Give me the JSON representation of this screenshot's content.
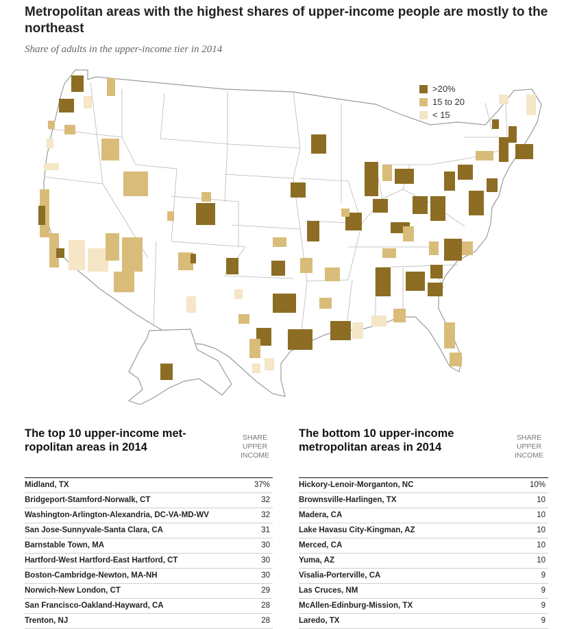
{
  "title": "Metropolitan areas with the highest shares of upper-income people are mostly to the northeast",
  "subtitle": "Share of adults in the upper-income tier in 2014",
  "legend": [
    {
      "label": ">20%",
      "color": "#8c6d23"
    },
    {
      "label": "15 to 20",
      "color": "#d9bc7a"
    },
    {
      "label": "< 15",
      "color": "#f4e6c6"
    }
  ],
  "chart_data": [
    {
      "type": "table",
      "title": "The top 10 upper-income metropolitan areas in 2014",
      "title_lines": [
        "The top 10 upper-income met-",
        "ropolitan areas in 2014"
      ],
      "column_header": [
        "SHARE",
        "UPPER",
        "INCOME"
      ],
      "rows": [
        {
          "area": "Midland, TX",
          "share": "37%"
        },
        {
          "area": "Bridgeport-Stamford-Norwalk, CT",
          "share": "32"
        },
        {
          "area": "Washington-Arlington-Alexandria, DC-VA-MD-WV",
          "share": "32"
        },
        {
          "area": "San Jose-Sunnyvale-Santa Clara, CA",
          "share": "31"
        },
        {
          "area": "Barnstable Town, MA",
          "share": "30"
        },
        {
          "area": "Hartford-West Hartford-East Hartford, CT",
          "share": "30"
        },
        {
          "area": "Boston-Cambridge-Newton, MA-NH",
          "share": "30"
        },
        {
          "area": "Norwich-New London, CT",
          "share": "29"
        },
        {
          "area": "San Francisco-Oakland-Hayward, CA",
          "share": "28"
        },
        {
          "area": "Trenton, NJ",
          "share": "28"
        }
      ]
    },
    {
      "type": "table",
      "title": "The bottom 10 upper-income metropolitan areas in 2014",
      "title_lines": [
        "The bottom 10 upper-income",
        "metropolitan areas in 2014"
      ],
      "column_header": [
        "SHARE",
        "UPPER",
        "INCOME"
      ],
      "rows": [
        {
          "area": "Hickory-Lenoir-Morganton, NC",
          "share": "10%"
        },
        {
          "area": "Brownsville-Harlingen, TX",
          "share": "10"
        },
        {
          "area": "Madera, CA",
          "share": "10"
        },
        {
          "area": "Lake Havasu City-Kingman, AZ",
          "share": "10"
        },
        {
          "area": "Merced, CA",
          "share": "10"
        },
        {
          "area": "Yuma, AZ",
          "share": "10"
        },
        {
          "area": "Visalia-Porterville, CA",
          "share": "9"
        },
        {
          "area": "Las Cruces, NM",
          "share": "9"
        },
        {
          "area": "McAllen-Edinburg-Mission, TX",
          "share": "9"
        },
        {
          "area": "Laredo, TX",
          "share": "9"
        }
      ]
    }
  ]
}
